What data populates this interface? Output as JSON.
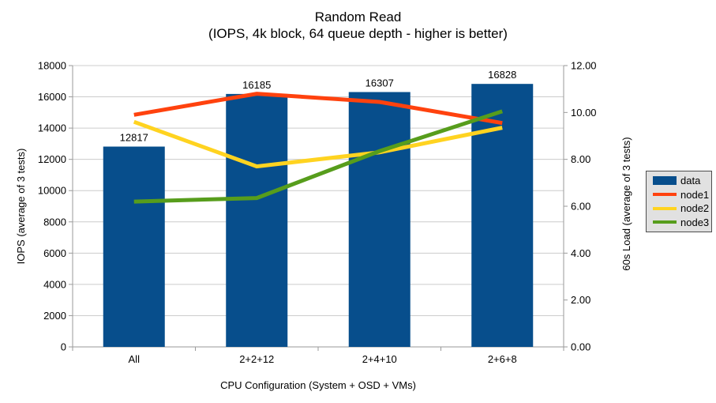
{
  "colors": {
    "background": "#ffffff",
    "grid": "#cccccc",
    "axis": "#9a9a9a",
    "text": "#000000",
    "legend_bg": "#e1e1e1",
    "legend_border": "#4d4d4d"
  },
  "chart_data": {
    "type": "bar+line",
    "title": "Random Read",
    "subtitle": "(IOPS, 4k block, 64 queue depth - higher is better)",
    "categories": [
      "All",
      "2+2+12",
      "2+4+10",
      "2+6+8"
    ],
    "series": [
      {
        "name": "data",
        "type": "bar",
        "axis": "left",
        "color": "#074e8c",
        "values": [
          12817,
          16185,
          16307,
          16828
        ],
        "labels": [
          "12817",
          "16185",
          "16307",
          "16828"
        ]
      },
      {
        "name": "node1",
        "type": "line",
        "axis": "right",
        "color": "#ff420e",
        "values": [
          9.9,
          10.8,
          10.45,
          9.55
        ]
      },
      {
        "name": "node2",
        "type": "line",
        "axis": "right",
        "color": "#ffd320",
        "values": [
          9.6,
          7.7,
          8.3,
          9.35
        ]
      },
      {
        "name": "node3",
        "type": "line",
        "axis": "right",
        "color": "#579d1c",
        "values": [
          6.2,
          6.35,
          8.35,
          10.05
        ]
      }
    ],
    "axes": {
      "left": {
        "title": "IOPS (average of 3 tests)",
        "min": 0,
        "max": 18000,
        "step": 2000,
        "decimals": 0
      },
      "right": {
        "title": "60s Load (average of 3 tests)",
        "min": 0,
        "max": 12,
        "step": 2,
        "decimals": 2
      },
      "x": {
        "title": "CPU Configuration (System + OSD + VMs)"
      }
    },
    "legend": {
      "position": "right",
      "entries": [
        "data",
        "node1",
        "node2",
        "node3"
      ]
    },
    "grid": "horizontal"
  }
}
